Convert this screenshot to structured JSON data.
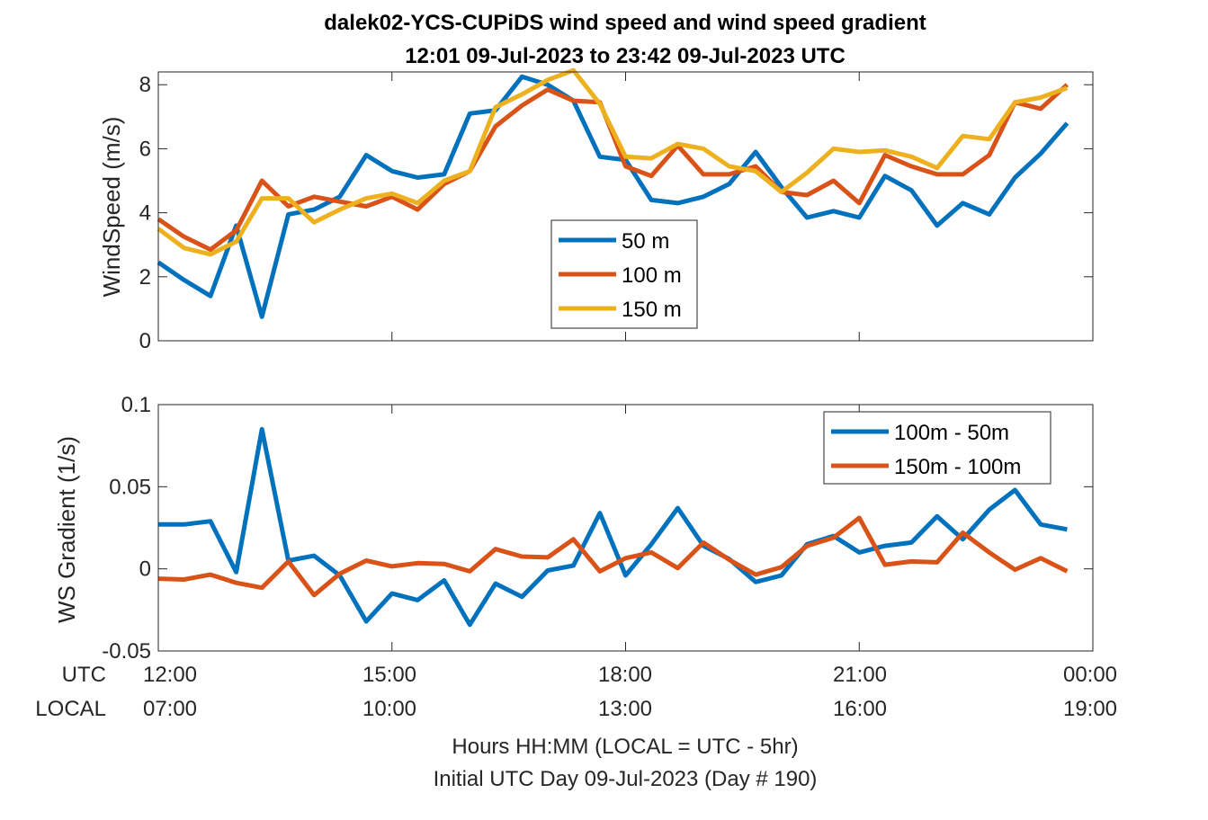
{
  "figure": {
    "title_line1": "dalek02-YCS-CUPiDS  wind speed and wind speed gradient",
    "title_line2": "12:01 09-Jul-2023 to 23:42 09-Jul-2023  UTC",
    "xlabel_line1": "Hours HH:MM  (LOCAL = UTC - 5hr)",
    "xlabel_line2": "Initial UTC Day 09-Jul-2023 (Day # 190)",
    "utc_row_label": "UTC",
    "local_row_label": "LOCAL",
    "utc_ticks": [
      "12:00",
      "15:00",
      "18:00",
      "21:00",
      "00:00"
    ],
    "local_ticks": [
      "07:00",
      "10:00",
      "13:00",
      "16:00",
      "19:00"
    ]
  },
  "chart_data": [
    {
      "type": "line",
      "ylabel": "WindSpeed (m/s)",
      "xlim": [
        12.0,
        24.0
      ],
      "ylim": [
        0,
        8.4
      ],
      "yticks": [
        0,
        2,
        4,
        6,
        8
      ],
      "legend_position": "center",
      "x": [
        12.0,
        12.33,
        12.67,
        13.0,
        13.33,
        13.67,
        14.0,
        14.33,
        14.67,
        15.0,
        15.33,
        15.67,
        16.0,
        16.33,
        16.67,
        17.0,
        17.33,
        17.67,
        18.0,
        18.33,
        18.67,
        19.0,
        19.33,
        19.67,
        20.0,
        20.33,
        20.67,
        21.0,
        21.33,
        21.67,
        22.0,
        22.33,
        22.67,
        23.0,
        23.33,
        23.67
      ],
      "series": [
        {
          "name": "50 m",
          "color": "#0072BD",
          "values": [
            2.45,
            1.9,
            1.4,
            3.6,
            0.75,
            3.95,
            4.1,
            4.5,
            5.8,
            5.3,
            5.1,
            5.2,
            7.1,
            7.2,
            8.25,
            8.0,
            7.5,
            5.75,
            5.65,
            4.4,
            4.3,
            4.5,
            4.9,
            5.9,
            4.8,
            3.85,
            4.05,
            3.85,
            5.15,
            4.7,
            3.6,
            4.3,
            3.95,
            5.1,
            5.85,
            6.8
          ]
        },
        {
          "name": "100 m",
          "color": "#D95319",
          "values": [
            3.8,
            3.25,
            2.85,
            3.45,
            5.0,
            4.2,
            4.5,
            4.35,
            4.2,
            4.5,
            4.1,
            4.9,
            5.3,
            6.7,
            7.35,
            7.85,
            7.5,
            7.45,
            5.45,
            5.15,
            6.1,
            5.2,
            5.2,
            5.45,
            4.65,
            4.55,
            5.0,
            4.3,
            5.8,
            5.45,
            5.2,
            5.2,
            5.8,
            7.45,
            7.25,
            8.0
          ]
        },
        {
          "name": "150 m",
          "color": "#EDB120",
          "values": [
            3.5,
            2.9,
            2.7,
            3.1,
            4.45,
            4.45,
            3.7,
            4.1,
            4.45,
            4.6,
            4.3,
            5.0,
            5.3,
            7.3,
            7.7,
            8.15,
            8.45,
            7.4,
            5.75,
            5.7,
            6.15,
            6.0,
            5.45,
            5.3,
            4.65,
            5.25,
            6.0,
            5.9,
            5.95,
            5.75,
            5.4,
            6.4,
            6.3,
            7.45,
            7.6,
            7.9
          ]
        }
      ]
    },
    {
      "type": "line",
      "ylabel": "WS Gradient (1/s)",
      "xlim": [
        12.0,
        24.0
      ],
      "ylim": [
        -0.05,
        0.1
      ],
      "yticks": [
        -0.05,
        0,
        0.05,
        0.1
      ],
      "ytick_labels": [
        "-0.05",
        "0",
        "0.05",
        "0.1"
      ],
      "legend_position": "top-right",
      "x": [
        12.0,
        12.33,
        12.67,
        13.0,
        13.33,
        13.67,
        14.0,
        14.33,
        14.67,
        15.0,
        15.33,
        15.67,
        16.0,
        16.33,
        16.67,
        17.0,
        17.33,
        17.67,
        18.0,
        18.33,
        18.67,
        19.0,
        19.33,
        19.67,
        20.0,
        20.33,
        20.67,
        21.0,
        21.33,
        21.67,
        22.0,
        22.33,
        22.67,
        23.0,
        23.33,
        23.67
      ],
      "series": [
        {
          "name": "100m - 50m",
          "color": "#0072BD",
          "values": [
            0.027,
            0.027,
            0.029,
            -0.002,
            0.085,
            0.005,
            0.008,
            -0.004,
            -0.032,
            -0.015,
            -0.019,
            -0.007,
            -0.034,
            -0.009,
            -0.017,
            -0.001,
            0.002,
            0.034,
            -0.004,
            0.015,
            0.037,
            0.014,
            0.006,
            -0.008,
            -0.004,
            0.015,
            0.02,
            0.01,
            0.014,
            0.016,
            0.032,
            0.018,
            0.036,
            0.048,
            0.027,
            0.024
          ]
        },
        {
          "name": "150m - 100m",
          "color": "#D95319",
          "values": [
            -0.006,
            -0.0065,
            -0.0035,
            -0.0085,
            -0.0115,
            0.0045,
            -0.016,
            -0.003,
            0.005,
            0.0015,
            0.0035,
            0.003,
            -0.0015,
            0.012,
            0.0075,
            0.007,
            0.018,
            -0.0015,
            0.0065,
            0.01,
            0.0005,
            0.016,
            0.0055,
            -0.0035,
            0.001,
            0.014,
            0.019,
            0.031,
            0.0025,
            0.0045,
            0.004,
            0.022,
            0.01,
            -0.0005,
            0.0065,
            -0.0015
          ]
        }
      ]
    }
  ]
}
